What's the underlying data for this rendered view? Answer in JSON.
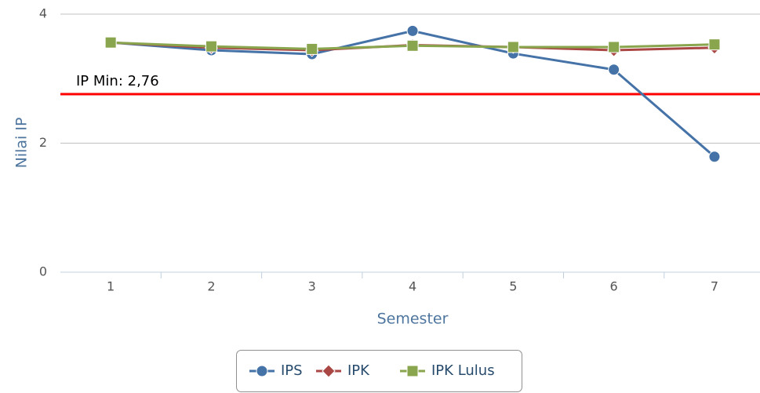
{
  "chart_data": {
    "type": "line",
    "categories": [
      "1",
      "2",
      "3",
      "4",
      "5",
      "6",
      "7"
    ],
    "series": [
      {
        "name": "IPS",
        "color": "#4572A7",
        "marker": "circle",
        "values": [
          3.56,
          3.44,
          3.38,
          3.74,
          3.39,
          3.14,
          1.79
        ]
      },
      {
        "name": "IPK",
        "color": "#AA4643",
        "marker": "diamond",
        "values": [
          3.56,
          3.48,
          3.44,
          3.52,
          3.49,
          3.44,
          3.48
        ]
      },
      {
        "name": "IPK Lulus",
        "color": "#89A54E",
        "marker": "square",
        "values": [
          3.56,
          3.5,
          3.46,
          3.51,
          3.49,
          3.49,
          3.53
        ]
      }
    ],
    "ylim": [
      0,
      4
    ],
    "yticks": [
      0,
      2,
      4
    ],
    "grid": true,
    "y_label": "Nilai IP",
    "x_label": "Semester",
    "plot_lines": [
      {
        "value": 2.76,
        "label": "IP Min: 2,76",
        "color": "#ff0000"
      }
    ],
    "legend": "bottom"
  }
}
